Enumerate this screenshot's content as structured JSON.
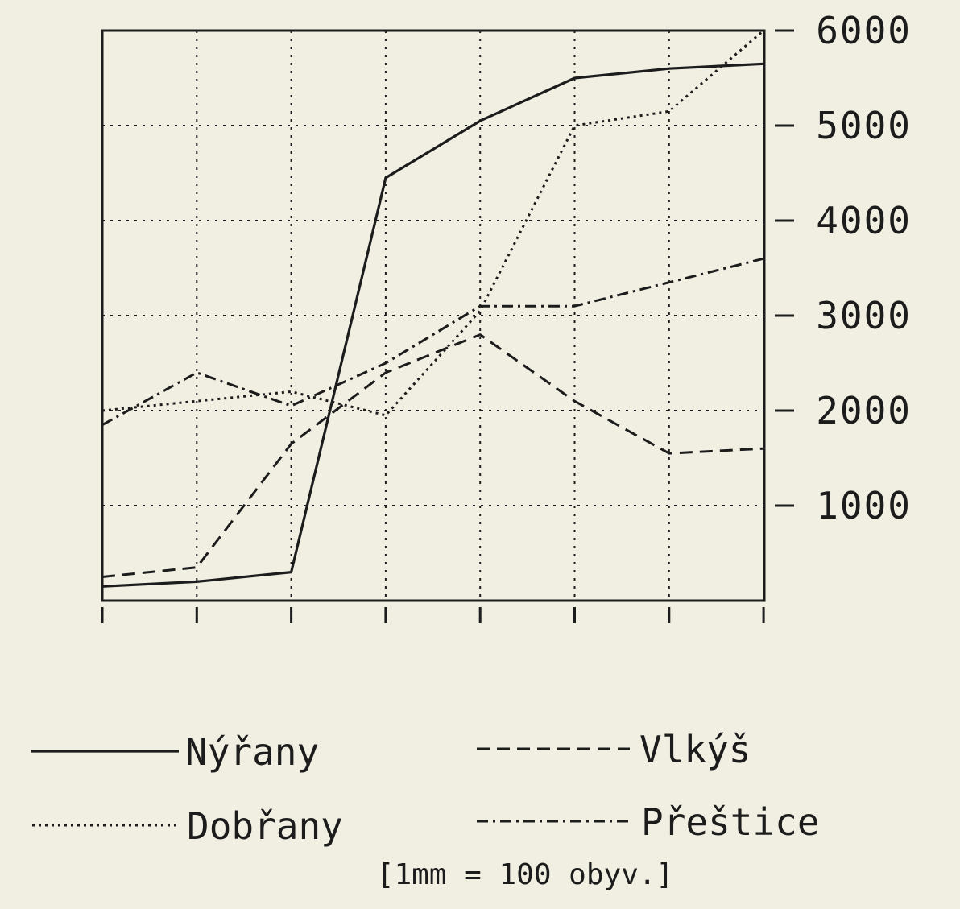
{
  "chart_data": {
    "type": "line",
    "title": "",
    "xlabel": "",
    "ylabel": "",
    "x": [
      1,
      2,
      3,
      4,
      5,
      6,
      7,
      8
    ],
    "ylim": [
      0,
      6000
    ],
    "y_ticks": [
      1000,
      2000,
      3000,
      4000,
      5000,
      6000
    ],
    "y_tick_labels": [
      "1000",
      "2000",
      "3000",
      "4000",
      "5000",
      "6000"
    ],
    "y_axis_side": "right",
    "grid": true,
    "legend_position": "bottom",
    "note": "[1mm = 100 obyv.]",
    "series": [
      {
        "name": "Nýřany",
        "style": "solid",
        "values": [
          150,
          200,
          300,
          4450,
          5050,
          5500,
          5600,
          5650
        ]
      },
      {
        "name": "Vlkýš",
        "style": "dashed",
        "values": [
          250,
          350,
          1650,
          2400,
          2800,
          2100,
          1550,
          1600
        ]
      },
      {
        "name": "Dobřany",
        "style": "dotted",
        "values": [
          2000,
          2100,
          2200,
          1950,
          3050,
          5000,
          5150,
          6000
        ]
      },
      {
        "name": "Přeštice",
        "style": "dashdot",
        "values": [
          1850,
          2400,
          2050,
          2500,
          3100,
          3100,
          3350,
          3600
        ]
      }
    ]
  }
}
